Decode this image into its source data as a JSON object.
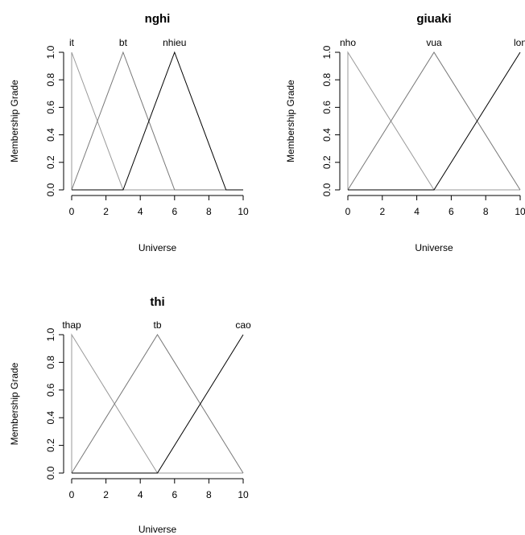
{
  "chart_data": [
    {
      "type": "line",
      "title": "nghi",
      "xlabel": "Universe",
      "ylabel": "Membership Grade",
      "xlim": [
        0,
        10
      ],
      "ylim": [
        0,
        1
      ],
      "xticks": [
        "0",
        "2",
        "4",
        "6",
        "8",
        "10"
      ],
      "yticks": [
        "0.0",
        "0.2",
        "0.4",
        "0.6",
        "0.8",
        "1.0"
      ],
      "grid": false,
      "series": [
        {
          "name": "it",
          "x": [
            0,
            0,
            3,
            10
          ],
          "y": [
            0,
            1,
            0,
            0
          ],
          "color": "#999999",
          "label_x": 0
        },
        {
          "name": "bt",
          "x": [
            0,
            3,
            6,
            10
          ],
          "y": [
            0,
            1,
            0,
            0
          ],
          "color": "#777777",
          "label_x": 3
        },
        {
          "name": "nhieu",
          "x": [
            0,
            3,
            6,
            9,
            10
          ],
          "y": [
            0,
            0,
            1,
            0,
            0
          ],
          "color": "#000000",
          "label_x": 6
        }
      ]
    },
    {
      "type": "line",
      "title": "giuaki",
      "xlabel": "Universe",
      "ylabel": "Membership Grade",
      "xlim": [
        0,
        10
      ],
      "ylim": [
        0,
        1
      ],
      "xticks": [
        "0",
        "2",
        "4",
        "6",
        "8",
        "10"
      ],
      "yticks": [
        "0.0",
        "0.2",
        "0.4",
        "0.6",
        "0.8",
        "1.0"
      ],
      "grid": false,
      "series": [
        {
          "name": "nho",
          "x": [
            0,
            0,
            5,
            10
          ],
          "y": [
            0,
            1,
            0,
            0
          ],
          "color": "#999999",
          "label_x": 0
        },
        {
          "name": "vua",
          "x": [
            0,
            5,
            10
          ],
          "y": [
            0,
            1,
            0
          ],
          "color": "#777777",
          "label_x": 5
        },
        {
          "name": "lon",
          "x": [
            0,
            5,
            10
          ],
          "y": [
            0,
            0,
            1
          ],
          "color": "#000000",
          "label_x": 10
        }
      ]
    },
    {
      "type": "line",
      "title": "thi",
      "xlabel": "Universe",
      "ylabel": "Membership Grade",
      "xlim": [
        0,
        10
      ],
      "ylim": [
        0,
        1
      ],
      "xticks": [
        "0",
        "2",
        "4",
        "6",
        "8",
        "10"
      ],
      "yticks": [
        "0.0",
        "0.2",
        "0.4",
        "0.6",
        "0.8",
        "1.0"
      ],
      "grid": false,
      "series": [
        {
          "name": "thap",
          "x": [
            0,
            0,
            5,
            10
          ],
          "y": [
            0,
            1,
            0,
            0
          ],
          "color": "#999999",
          "label_x": 0
        },
        {
          "name": "tb",
          "x": [
            0,
            5,
            10
          ],
          "y": [
            0,
            1,
            0
          ],
          "color": "#777777",
          "label_x": 5
        },
        {
          "name": "cao",
          "x": [
            0,
            5,
            10
          ],
          "y": [
            0,
            0,
            1
          ],
          "color": "#000000",
          "label_x": 10
        }
      ]
    }
  ]
}
